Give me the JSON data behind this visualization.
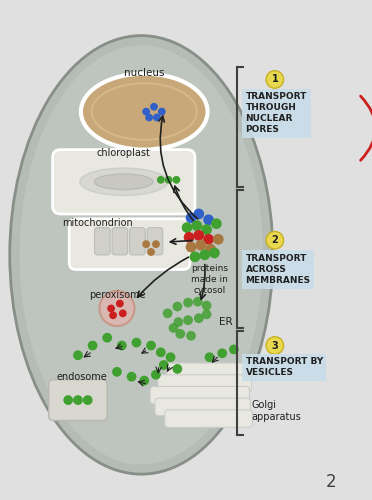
{
  "bg_color": "#c8c8c8",
  "cell_color": "#b8bdb8",
  "cell_outer_color": "#d0d4d0",
  "nucleus_fill": "#c8a878",
  "nucleus_border": "#ffffff",
  "chloroplast_fill": "#ffffff",
  "chloroplast_border": "#ffffff",
  "mito_fill": "#ffffff",
  "mito_border": "#ffffff",
  "peroxisome_fill": "#d8b8b0",
  "er_color": "#50a050",
  "golgi_fill": "#e8e8e8",
  "endosome_fill": "#e0e0e0",
  "label1_bg": "#c8dce8",
  "label2_bg": "#c8dce8",
  "label3_bg": "#c8dce8",
  "num_bg": "#e8d850",
  "arrow_color": "#202020",
  "text_color": "#202020",
  "bracket_color": "#404040",
  "red_curl_color": "#cc2020",
  "page_num": "2",
  "title1": "TRANSPORT\nTHROUGH\nNUCLEAR\nPORES",
  "title2": "TRANSPORT\nACROSS\nMEMBRANES",
  "title3": "TRANSPORT BY\nVESICLES"
}
